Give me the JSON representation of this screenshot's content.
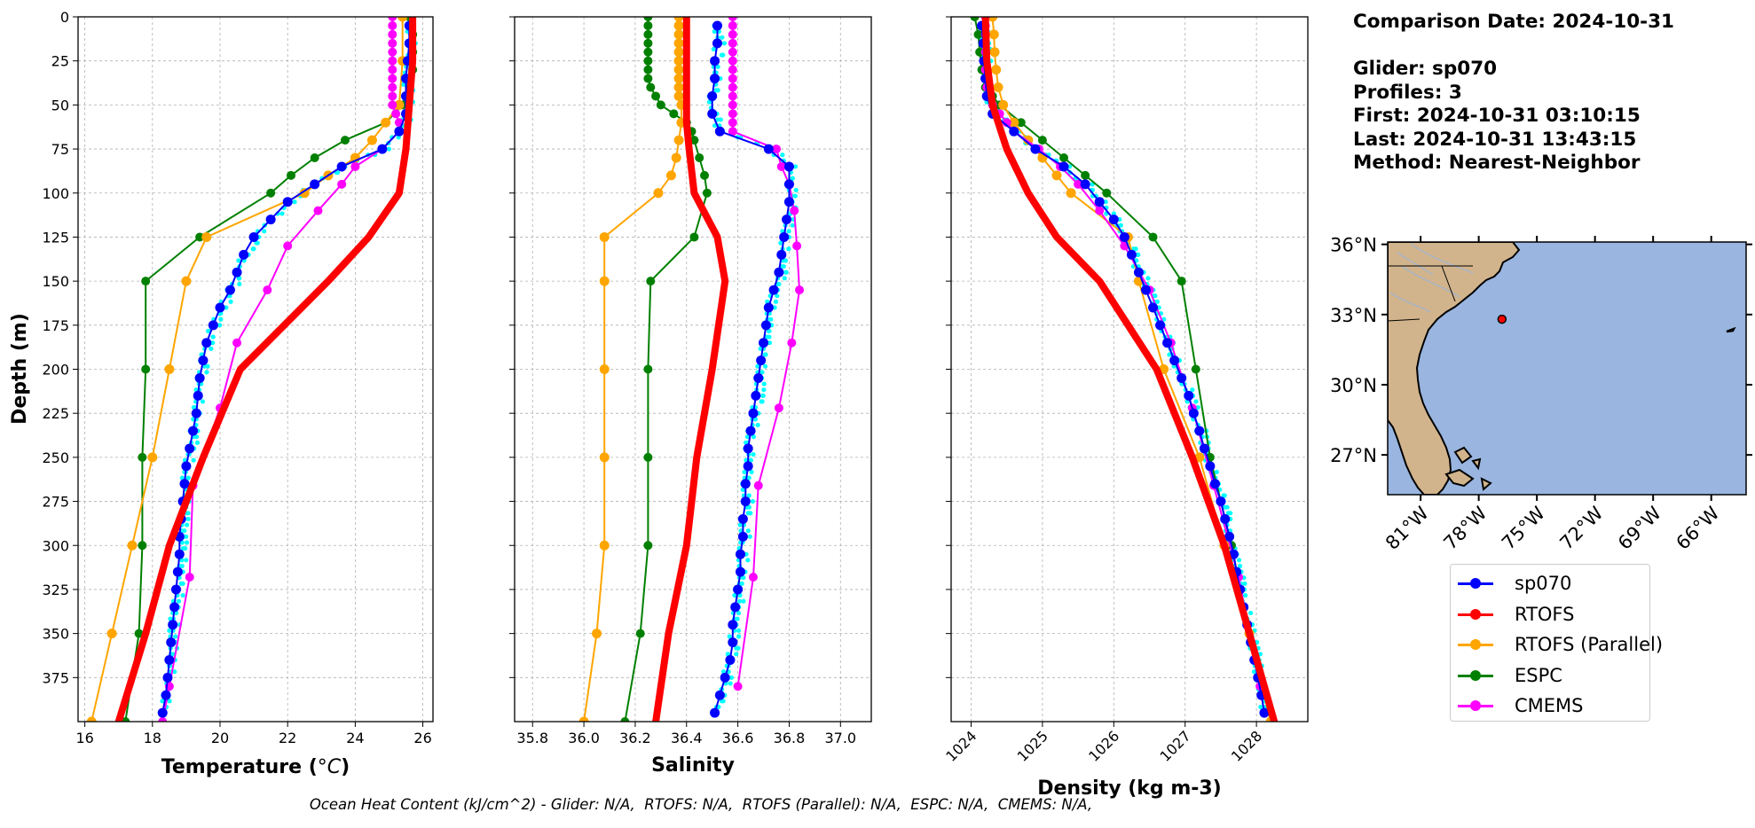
{
  "info": {
    "lines": [
      "Comparison Date: 2024-10-31",
      "",
      "Glider: sp070",
      "Profiles: 3",
      "First: 2024-10-31 03:10:15",
      "Last: 2024-10-31 13:43:15",
      "Method: Nearest-Neighbor"
    ]
  },
  "footer": "Ocean Heat Content (kJ/cm^2) - Glider: N/A,  RTOFS: N/A,  RTOFS (Parallel): N/A,  ESPC: N/A,  CMEMS: N/A,",
  "colors": {
    "sp070": "#0000ff",
    "RTOFS": "#ff0000",
    "RTOFS (Parallel)": "#ffa500",
    "ESPC": "#008000",
    "CMEMS": "#ff00ff",
    "glider_raw": "#00ffff",
    "ocean": "#99b5e0",
    "land": "#d2b48c"
  },
  "legend": [
    {
      "label": "sp070",
      "color": "#0000ff"
    },
    {
      "label": "RTOFS",
      "color": "#ff0000"
    },
    {
      "label": "RTOFS (Parallel)",
      "color": "#ffa500"
    },
    {
      "label": "ESPC",
      "color": "#008000"
    },
    {
      "label": "CMEMS",
      "color": "#ff00ff"
    }
  ],
  "map": {
    "lat_labels": [
      "36°N",
      "33°N",
      "30°N",
      "27°N"
    ],
    "lon_labels": [
      "81°W",
      "78°W",
      "75°W",
      "72°W",
      "69°W",
      "66°W"
    ],
    "lat_values": [
      36,
      33,
      30,
      27
    ],
    "lon_values": [
      -81,
      -78,
      -75,
      -72,
      -69,
      -66
    ],
    "extent": {
      "lon": [
        -82.7,
        -64.2
      ],
      "lat": [
        25.3,
        36.1
      ]
    },
    "glider_position": {
      "lon": -76.8,
      "lat": 32.8
    }
  },
  "chart_data": [
    {
      "type": "line",
      "xlabel": "Temperature (°C)",
      "ylabel": "Depth (m)",
      "xlim": [
        15.8,
        26.3
      ],
      "ylim": [
        400,
        0
      ],
      "xticks": [
        16,
        18,
        20,
        22,
        24,
        26
      ],
      "yticks": [
        0,
        25,
        50,
        75,
        100,
        125,
        150,
        175,
        200,
        225,
        250,
        275,
        300,
        325,
        350,
        375
      ],
      "grid": true,
      "series": [
        {
          "name": "sp070",
          "depth": [
            5,
            15,
            25,
            35,
            45,
            55,
            65,
            75,
            85,
            95,
            105,
            115,
            125,
            135,
            145,
            155,
            165,
            175,
            185,
            195,
            205,
            215,
            225,
            235,
            245,
            255,
            265,
            275,
            285,
            295,
            305,
            315,
            325,
            335,
            345,
            355,
            365,
            375,
            385,
            395
          ],
          "values": [
            25.6,
            25.6,
            25.55,
            25.5,
            25.5,
            25.5,
            25.3,
            24.8,
            23.6,
            22.8,
            22.0,
            21.5,
            21.0,
            20.7,
            20.5,
            20.3,
            20.0,
            19.8,
            19.6,
            19.5,
            19.4,
            19.35,
            19.3,
            19.2,
            19.1,
            19.0,
            18.95,
            18.9,
            18.85,
            18.8,
            18.8,
            18.75,
            18.7,
            18.65,
            18.6,
            18.55,
            18.5,
            18.45,
            18.4,
            18.3
          ]
        },
        {
          "name": "RTOFS",
          "depth": [
            0,
            25,
            50,
            75,
            100,
            125,
            150,
            200,
            250,
            300,
            350,
            400
          ],
          "values": [
            25.7,
            25.7,
            25.6,
            25.5,
            25.3,
            24.4,
            23.2,
            20.6,
            19.5,
            18.5,
            17.8,
            17.0
          ]
        },
        {
          "name": "RTOFS (Parallel)",
          "depth": [
            0,
            25,
            50,
            60,
            70,
            80,
            90,
            100,
            125,
            150,
            200,
            250,
            300,
            350,
            400
          ],
          "values": [
            25.4,
            25.4,
            25.3,
            24.9,
            24.5,
            24.0,
            23.2,
            22.5,
            19.6,
            19.0,
            18.5,
            18.0,
            17.4,
            16.8,
            16.2
          ]
        },
        {
          "name": "ESPC",
          "depth": [
            0,
            10,
            20,
            30,
            40,
            50,
            60,
            70,
            80,
            90,
            100,
            125,
            150,
            200,
            250,
            300,
            350,
            400
          ],
          "values": [
            25.6,
            25.7,
            25.7,
            25.7,
            25.6,
            25.4,
            24.9,
            23.7,
            22.8,
            22.1,
            21.5,
            19.4,
            17.8,
            17.8,
            17.7,
            17.7,
            17.6,
            17.2
          ]
        },
        {
          "name": "CMEMS",
          "depth": [
            0,
            5,
            10,
            15,
            20,
            25,
            30,
            35,
            40,
            45,
            50,
            55,
            60,
            65,
            75,
            85,
            95,
            110,
            130,
            155,
            185,
            222,
            266,
            318,
            380,
            400
          ],
          "values": [
            25.1,
            25.1,
            25.1,
            25.1,
            25.1,
            25.1,
            25.1,
            25.1,
            25.1,
            25.1,
            25.1,
            25.2,
            25.3,
            25.3,
            24.8,
            24.0,
            23.6,
            22.9,
            22.0,
            21.4,
            20.5,
            20.0,
            19.2,
            19.1,
            18.5,
            18.3
          ]
        }
      ]
    },
    {
      "type": "line",
      "xlabel": "Salinity",
      "xlim": [
        35.73,
        37.12
      ],
      "ylim": [
        400,
        0
      ],
      "xticks": [
        35.8,
        36.0,
        36.2,
        36.4,
        36.6,
        36.8,
        37.0
      ],
      "grid": true,
      "series": [
        {
          "name": "sp070",
          "depth": [
            5,
            15,
            25,
            35,
            45,
            55,
            65,
            75,
            85,
            95,
            105,
            115,
            125,
            135,
            145,
            155,
            165,
            175,
            185,
            195,
            205,
            215,
            225,
            235,
            245,
            255,
            265,
            275,
            285,
            295,
            305,
            315,
            325,
            335,
            345,
            355,
            365,
            375,
            385,
            395
          ],
          "values": [
            36.52,
            36.52,
            36.51,
            36.51,
            36.5,
            36.5,
            36.53,
            36.72,
            36.8,
            36.8,
            36.8,
            36.79,
            36.78,
            36.77,
            36.76,
            36.74,
            36.72,
            36.71,
            36.7,
            36.69,
            36.68,
            36.67,
            36.66,
            36.65,
            36.64,
            36.64,
            36.63,
            36.63,
            36.62,
            36.62,
            36.61,
            36.61,
            36.6,
            36.59,
            36.58,
            36.58,
            36.57,
            36.55,
            36.53,
            36.51
          ]
        },
        {
          "name": "RTOFS",
          "depth": [
            0,
            25,
            50,
            60,
            75,
            100,
            125,
            150,
            200,
            250,
            300,
            350,
            400
          ],
          "values": [
            36.4,
            36.4,
            36.4,
            36.4,
            36.41,
            36.43,
            36.52,
            36.55,
            36.5,
            36.44,
            36.4,
            36.33,
            36.28
          ]
        },
        {
          "name": "RTOFS (Parallel)",
          "depth": [
            0,
            5,
            10,
            15,
            20,
            25,
            30,
            35,
            40,
            45,
            50,
            60,
            70,
            80,
            90,
            100,
            125,
            150,
            200,
            250,
            300,
            350,
            400
          ],
          "values": [
            36.37,
            36.37,
            36.37,
            36.37,
            36.37,
            36.37,
            36.37,
            36.37,
            36.37,
            36.37,
            36.38,
            36.38,
            36.37,
            36.36,
            36.34,
            36.29,
            36.08,
            36.08,
            36.08,
            36.08,
            36.08,
            36.05,
            36.0
          ]
        },
        {
          "name": "ESPC",
          "depth": [
            0,
            5,
            10,
            15,
            20,
            25,
            30,
            35,
            40,
            45,
            50,
            55,
            60,
            65,
            70,
            80,
            90,
            100,
            125,
            150,
            200,
            250,
            300,
            350,
            400
          ],
          "values": [
            36.25,
            36.25,
            36.25,
            36.25,
            36.25,
            36.25,
            36.25,
            36.25,
            36.26,
            36.28,
            36.3,
            36.35,
            36.4,
            36.42,
            36.43,
            36.45,
            36.47,
            36.48,
            36.43,
            36.26,
            36.25,
            36.25,
            36.25,
            36.22,
            36.16
          ]
        },
        {
          "name": "CMEMS",
          "depth": [
            0,
            5,
            10,
            15,
            20,
            25,
            30,
            35,
            40,
            45,
            50,
            55,
            60,
            65,
            75,
            85,
            95,
            110,
            130,
            155,
            185,
            222,
            266,
            318,
            380
          ],
          "values": [
            36.58,
            36.58,
            36.58,
            36.58,
            36.58,
            36.58,
            36.58,
            36.58,
            36.58,
            36.58,
            36.58,
            36.58,
            36.58,
            36.58,
            36.75,
            36.77,
            36.8,
            36.82,
            36.83,
            36.84,
            36.81,
            36.76,
            36.68,
            36.66,
            36.6
          ]
        }
      ]
    },
    {
      "type": "line",
      "xlabel": "Density (kg m-3)",
      "xlim": [
        1023.72,
        1028.72
      ],
      "ylim": [
        400,
        0
      ],
      "xticks": [
        1024,
        1025,
        1026,
        1027,
        1028
      ],
      "grid": true,
      "series": [
        {
          "name": "sp070",
          "depth": [
            5,
            15,
            25,
            35,
            45,
            55,
            65,
            75,
            85,
            95,
            105,
            115,
            125,
            135,
            145,
            155,
            165,
            175,
            185,
            195,
            205,
            215,
            225,
            235,
            245,
            255,
            265,
            275,
            285,
            295,
            305,
            315,
            325,
            335,
            345,
            355,
            365,
            375,
            385,
            395
          ],
          "values": [
            1024.15,
            1024.17,
            1024.18,
            1024.2,
            1024.22,
            1024.3,
            1024.6,
            1024.9,
            1025.3,
            1025.6,
            1025.8,
            1026.0,
            1026.15,
            1026.25,
            1026.35,
            1026.45,
            1026.55,
            1026.65,
            1026.75,
            1026.85,
            1026.95,
            1027.05,
            1027.12,
            1027.2,
            1027.27,
            1027.35,
            1027.42,
            1027.5,
            1027.56,
            1027.62,
            1027.68,
            1027.72,
            1027.77,
            1027.82,
            1027.87,
            1027.92,
            1027.97,
            1028.02,
            1028.07,
            1028.11
          ]
        },
        {
          "name": "RTOFS",
          "depth": [
            0,
            25,
            50,
            75,
            100,
            125,
            150,
            200,
            250,
            300,
            350,
            400
          ],
          "values": [
            1024.2,
            1024.22,
            1024.3,
            1024.5,
            1024.8,
            1025.2,
            1025.8,
            1026.6,
            1027.1,
            1027.55,
            1027.9,
            1028.25
          ]
        },
        {
          "name": "RTOFS (Parallel)",
          "depth": [
            0,
            10,
            20,
            30,
            40,
            50,
            60,
            70,
            80,
            90,
            100,
            125,
            150,
            200,
            250,
            300,
            350,
            400
          ],
          "values": [
            1024.3,
            1024.32,
            1024.33,
            1024.35,
            1024.38,
            1024.45,
            1024.6,
            1024.8,
            1025.0,
            1025.2,
            1025.4,
            1026.2,
            1026.35,
            1026.7,
            1027.2,
            1027.55,
            1027.9,
            1028.2
          ]
        },
        {
          "name": "ESPC",
          "depth": [
            0,
            10,
            20,
            30,
            40,
            45,
            50,
            60,
            70,
            80,
            90,
            100,
            125,
            150,
            200,
            250,
            300,
            350,
            400
          ],
          "values": [
            1024.05,
            1024.1,
            1024.12,
            1024.15,
            1024.2,
            1024.3,
            1024.4,
            1024.7,
            1025.0,
            1025.3,
            1025.6,
            1025.9,
            1026.55,
            1026.95,
            1027.15,
            1027.35,
            1027.65,
            1027.9,
            1028.2
          ]
        },
        {
          "name": "CMEMS",
          "depth": [
            0,
            5,
            10,
            15,
            20,
            25,
            30,
            35,
            40,
            45,
            50,
            55,
            60,
            65,
            75,
            85,
            95,
            110,
            130,
            155,
            185,
            222,
            266,
            318,
            380
          ],
          "values": [
            1024.2,
            1024.2,
            1024.2,
            1024.2,
            1024.2,
            1024.2,
            1024.2,
            1024.2,
            1024.22,
            1024.25,
            1024.3,
            1024.4,
            1024.5,
            1024.6,
            1024.95,
            1025.25,
            1025.5,
            1025.8,
            1026.15,
            1026.5,
            1026.8,
            1027.1,
            1027.4,
            1027.75,
            1028.05
          ]
        }
      ]
    }
  ]
}
